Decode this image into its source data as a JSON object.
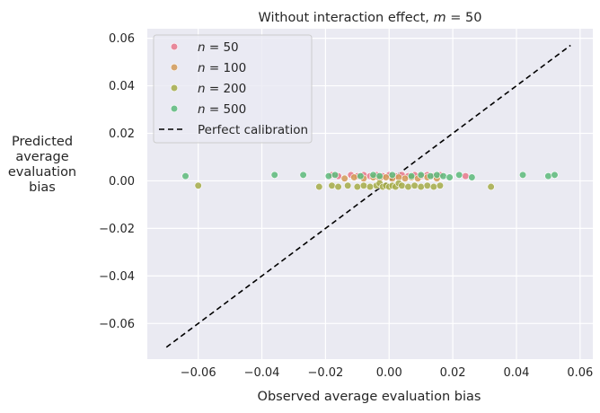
{
  "chart_data": {
    "type": "scatter",
    "title": "Without interaction effect, m = 50",
    "title_parts": {
      "prefix": "Without interaction effect, ",
      "var": "m",
      "suffix": " = 50"
    },
    "xlabel": "Observed average evaluation bias",
    "ylabel_lines": [
      "Predicted",
      "average",
      "evaluation",
      "bias"
    ],
    "xlim": [
      -0.076,
      0.064
    ],
    "ylim": [
      -0.075,
      0.064
    ],
    "xticks": [
      -0.06,
      -0.04,
      -0.02,
      0.0,
      0.02,
      0.04,
      0.06
    ],
    "yticks": [
      -0.06,
      -0.04,
      -0.02,
      0.0,
      0.02,
      0.04,
      0.06
    ],
    "tick_labels_x": [
      "−0.06",
      "−0.04",
      "−0.02",
      "0.00",
      "0.02",
      "0.04",
      "0.06"
    ],
    "tick_labels_y": [
      "−0.06",
      "−0.04",
      "−0.02",
      "0.00",
      "0.02",
      "0.04",
      "0.06"
    ],
    "grid": true,
    "legend": "top-left",
    "calibration_line": {
      "name": "Perfect calibration",
      "from": [
        -0.07,
        -0.07
      ],
      "to": [
        0.057,
        0.057
      ],
      "color": "#000000"
    },
    "series": [
      {
        "name": "n = 50",
        "var": "n",
        "value_text": " = 50",
        "color": "#e8788b",
        "points": [
          [
            -0.018,
            0.0025
          ],
          [
            -0.016,
            0.002
          ],
          [
            -0.012,
            0.0025
          ],
          [
            -0.01,
            0.002
          ],
          [
            -0.008,
            0.0025
          ],
          [
            -0.006,
            0.002
          ],
          [
            -0.004,
            0.0025
          ],
          [
            -0.002,
            0.002
          ],
          [
            0.0,
            0.0025
          ],
          [
            0.002,
            0.002
          ],
          [
            0.004,
            0.0025
          ],
          [
            0.006,
            0.002
          ],
          [
            0.008,
            0.0025
          ],
          [
            0.01,
            0.002
          ],
          [
            0.012,
            0.0025
          ],
          [
            0.014,
            0.002
          ],
          [
            0.016,
            0.0025
          ],
          [
            0.024,
            0.002
          ]
        ]
      },
      {
        "name": "n = 100",
        "var": "n",
        "value_text": " = 100",
        "color": "#d29a56",
        "points": [
          [
            -0.014,
            0.001
          ],
          [
            -0.011,
            0.0015
          ],
          [
            -0.008,
            0.001
          ],
          [
            -0.005,
            0.0015
          ],
          [
            -0.003,
            0.001
          ],
          [
            -0.001,
            0.0015
          ],
          [
            0.001,
            0.001
          ],
          [
            0.003,
            0.0015
          ],
          [
            0.005,
            0.001
          ],
          [
            0.007,
            0.0015
          ],
          [
            0.009,
            0.001
          ],
          [
            0.012,
            0.0015
          ],
          [
            0.015,
            0.001
          ]
        ]
      },
      {
        "name": "n = 200",
        "var": "n",
        "value_text": " = 200",
        "color": "#a5ac48",
        "points": [
          [
            -0.06,
            -0.002
          ],
          [
            -0.022,
            -0.0025
          ],
          [
            -0.018,
            -0.002
          ],
          [
            -0.016,
            -0.0025
          ],
          [
            -0.013,
            -0.002
          ],
          [
            -0.01,
            -0.0025
          ],
          [
            -0.008,
            -0.002
          ],
          [
            -0.006,
            -0.0025
          ],
          [
            -0.004,
            -0.002
          ],
          [
            -0.003,
            -0.001
          ],
          [
            -0.002,
            -0.0025
          ],
          [
            -0.001,
            -0.002
          ],
          [
            0.0,
            -0.0025
          ],
          [
            0.001,
            -0.002
          ],
          [
            0.002,
            -0.0025
          ],
          [
            0.003,
            -0.001
          ],
          [
            0.004,
            -0.002
          ],
          [
            0.006,
            -0.0025
          ],
          [
            0.008,
            -0.002
          ],
          [
            0.01,
            -0.0025
          ],
          [
            0.012,
            -0.002
          ],
          [
            0.014,
            -0.0025
          ],
          [
            0.016,
            -0.002
          ],
          [
            0.032,
            -0.0025
          ]
        ]
      },
      {
        "name": "n = 500",
        "var": "n",
        "value_text": " = 500",
        "color": "#5cba7a",
        "points": [
          [
            -0.064,
            0.002
          ],
          [
            -0.036,
            0.0025
          ],
          [
            -0.027,
            0.0025
          ],
          [
            -0.019,
            0.002
          ],
          [
            -0.017,
            0.0025
          ],
          [
            -0.009,
            0.002
          ],
          [
            -0.005,
            0.0025
          ],
          [
            -0.003,
            0.002
          ],
          [
            0.001,
            0.0025
          ],
          [
            0.007,
            0.002
          ],
          [
            0.01,
            0.0025
          ],
          [
            0.013,
            0.002
          ],
          [
            0.015,
            0.0025
          ],
          [
            0.017,
            0.002
          ],
          [
            0.019,
            0.0015
          ],
          [
            0.022,
            0.0025
          ],
          [
            0.026,
            0.0015
          ],
          [
            0.042,
            0.0025
          ],
          [
            0.05,
            0.002
          ],
          [
            0.052,
            0.0025
          ]
        ]
      }
    ]
  }
}
